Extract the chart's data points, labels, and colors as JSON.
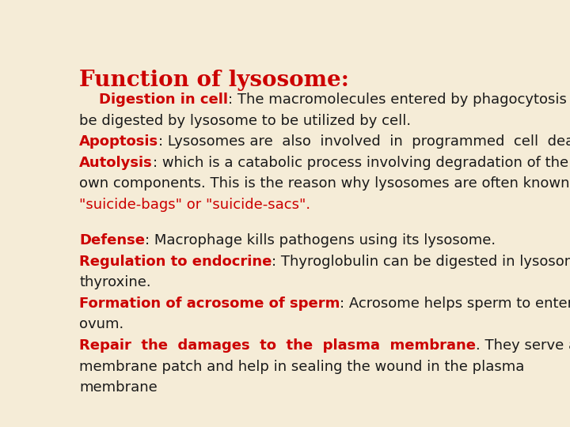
{
  "bg_color": "#f5ecd7",
  "title": "Function of lysosome:",
  "title_color": "#cc0000",
  "title_fontsize": 20,
  "red_color": "#cc0000",
  "dark_color": "#1a1a1a",
  "body_fontsize": 13,
  "lines": [
    [
      {
        "text": "    Digestion in cell",
        "color": "#cc0000",
        "bold": true
      },
      {
        "text": ": The macromolecules entered by phagocytosis can",
        "color": "#1a1a1a",
        "bold": false
      }
    ],
    [
      {
        "text": "be digested by lysosome to be utilized by cell.",
        "color": "#1a1a1a",
        "bold": false
      }
    ],
    [
      {
        "text": "Apoptosis",
        "color": "#cc0000",
        "bold": true
      },
      {
        "text": ": Lysosomes are  also  involved  in  programmed  cell  death    .",
        "color": "#1a1a1a",
        "bold": false
      }
    ],
    [
      {
        "text": "Autolysis",
        "color": "#cc0000",
        "bold": true
      },
      {
        "text": ": which is a catabolic process involving degradation of the cells",
        "color": "#1a1a1a",
        "bold": false
      }
    ],
    [
      {
        "text": "own components. This is the reason why lysosomes are often known as",
        "color": "#1a1a1a",
        "bold": false
      }
    ],
    [
      {
        "text": "\"suicide-bags\" or \"suicide-sacs\".",
        "color": "#cc0000",
        "bold": false
      }
    ],
    [
      {
        "text": "",
        "color": "#1a1a1a",
        "bold": false
      }
    ],
    [
      {
        "text": "Defense",
        "color": "#cc0000",
        "bold": true
      },
      {
        "text": ": Macrophage kills pathogens using its lysosome.",
        "color": "#1a1a1a",
        "bold": false
      }
    ],
    [
      {
        "text": "Regulation to endocrine",
        "color": "#cc0000",
        "bold": true
      },
      {
        "text": ": Thyroglobulin can be digested in lysosome as",
        "color": "#1a1a1a",
        "bold": false
      }
    ],
    [
      {
        "text": "thyroxine.",
        "color": "#1a1a1a",
        "bold": false
      }
    ],
    [
      {
        "text": "Formation of acrosome of sperm",
        "color": "#cc0000",
        "bold": true
      },
      {
        "text": ": Acrosome helps sperm to enter",
        "color": "#1a1a1a",
        "bold": false
      }
    ],
    [
      {
        "text": "ovum.",
        "color": "#1a1a1a",
        "bold": false
      }
    ],
    [
      {
        "text": "Repair  the  damages  to  the  plasma  membrane",
        "color": "#cc0000",
        "bold": true
      },
      {
        "text": ". They serve as",
        "color": "#1a1a1a",
        "bold": false
      }
    ],
    [
      {
        "text": "membrane patch and help in sealing the wound in the plasma",
        "color": "#1a1a1a",
        "bold": false
      }
    ],
    [
      {
        "text": "membrane",
        "color": "#1a1a1a",
        "bold": false
      }
    ]
  ]
}
